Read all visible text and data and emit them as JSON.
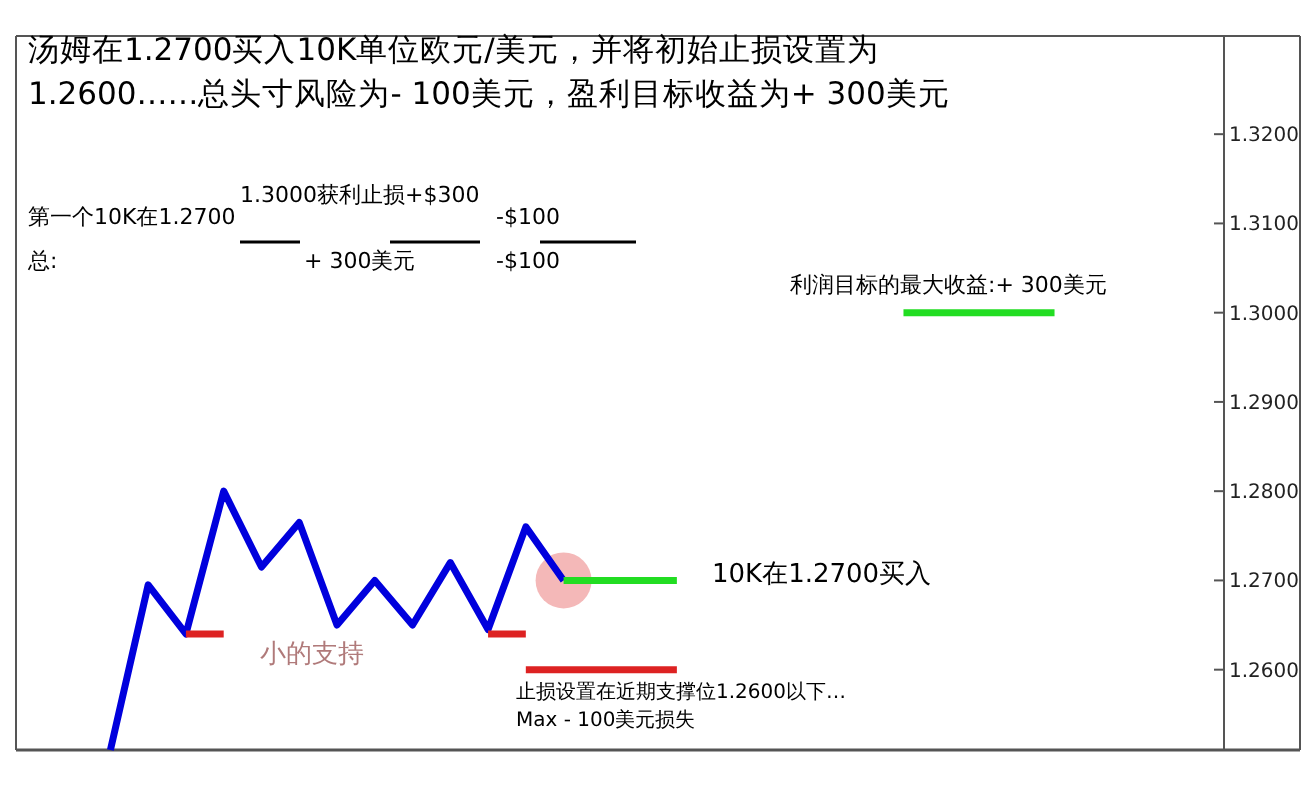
{
  "chart_data": {
    "type": "line",
    "title": "汤姆在1.2700买入10K单位欧元/美元，并将初始止损设置为1.2600……总头寸风险为- 100美元，盈利目标收益为+ 300美元",
    "categories": [
      null,
      null,
      null,
      null,
      null,
      null,
      null,
      null,
      null,
      null,
      null,
      null,
      null,
      null,
      null,
      null,
      null,
      null,
      null,
      null,
      null,
      null,
      null,
      null,
      null,
      null,
      null,
      null,
      null,
      null,
      null,
      null,
      null,
      null
    ],
    "ylim": [
      1.251,
      1.331
    ],
    "yticks": [
      {
        "value": 1.26,
        "label": "1.2600"
      },
      {
        "value": 1.27,
        "label": "1.2700"
      },
      {
        "value": 1.28,
        "label": "1.2800"
      },
      {
        "value": 1.29,
        "label": "1.2900"
      },
      {
        "value": 1.3,
        "label": "1.3000"
      },
      {
        "value": 1.31,
        "label": "1.3100"
      },
      {
        "value": 1.32,
        "label": "1.3200"
      }
    ],
    "tick_labels": "y",
    "line_style": "solid",
    "series": [
      {
        "color": "#0000dd",
        "values": [
          null,
          null,
          1.251,
          1.2695,
          1.264,
          1.28,
          1.2715,
          1.2765,
          1.265,
          1.27,
          1.265,
          1.272,
          1.2645,
          1.276,
          1.27,
          null,
          null,
          null,
          null,
          null,
          null,
          null,
          null,
          null,
          null,
          null,
          null,
          null,
          null,
          null,
          null,
          null,
          null,
          null
        ]
      },
      {
        "color": "#22dd22",
        "values": [
          null,
          null,
          null,
          null,
          null,
          null,
          null,
          null,
          null,
          null,
          null,
          null,
          null,
          null,
          1.27,
          1.27,
          1.27,
          1.27,
          null,
          null,
          null,
          null,
          null,
          null,
          null,
          null,
          null,
          null,
          null,
          null,
          null,
          null,
          null,
          null
        ]
      },
      {
        "color": "#dd2222",
        "values": [
          null,
          null,
          null,
          null,
          1.264,
          1.264,
          null,
          null,
          null,
          null,
          null,
          null,
          null,
          null,
          null,
          null,
          null,
          null,
          null,
          null,
          null,
          null,
          null,
          null,
          null,
          null,
          null,
          null,
          null,
          null,
          null,
          null,
          null,
          null
        ]
      },
      {
        "color": "#dd2222",
        "values": [
          null,
          null,
          null,
          null,
          null,
          null,
          null,
          null,
          null,
          null,
          null,
          null,
          1.264,
          1.264,
          null,
          null,
          null,
          null,
          null,
          null,
          null,
          null,
          null,
          null,
          null,
          null,
          null,
          null,
          null,
          null,
          null,
          null,
          null,
          null
        ]
      },
      {
        "color": "#dd2222",
        "values": [
          null,
          null,
          null,
          null,
          null,
          null,
          null,
          null,
          null,
          null,
          null,
          null,
          null,
          1.26,
          1.26,
          1.26,
          1.26,
          1.26,
          null,
          null,
          null,
          null,
          null,
          null,
          null,
          null,
          null,
          null,
          null,
          null,
          null,
          null,
          null,
          null
        ]
      },
      {
        "color": "#22dd22",
        "values": [
          null,
          null,
          null,
          null,
          null,
          null,
          null,
          null,
          null,
          null,
          null,
          null,
          null,
          null,
          null,
          null,
          null,
          null,
          null,
          null,
          null,
          null,
          null,
          1.3,
          1.3,
          1.3,
          1.3,
          1.3,
          null,
          null,
          null,
          null,
          null,
          null
        ]
      },
      {
        "type": "scatter",
        "marker": "circle",
        "color": "#f4b8b8",
        "values": [
          null,
          null,
          null,
          null,
          null,
          null,
          null,
          null,
          null,
          null,
          null,
          null,
          null,
          null,
          1.27,
          null,
          null,
          null,
          null,
          null,
          null,
          null,
          null,
          null,
          null,
          null,
          null,
          null,
          null,
          null,
          null,
          null,
          null,
          null
        ]
      }
    ],
    "annotations": [
      "第一个10K在1.2700",
      "1.3000获利止损+$300",
      "-$100",
      "总:",
      "+ 300美元",
      "-$100",
      "利润目标的最大收益:+ 300美元",
      "10K在1.2700买入",
      "小的支持",
      "止损设置在近期支撑位1.2600以下…",
      "Max - 100美元损失"
    ]
  }
}
